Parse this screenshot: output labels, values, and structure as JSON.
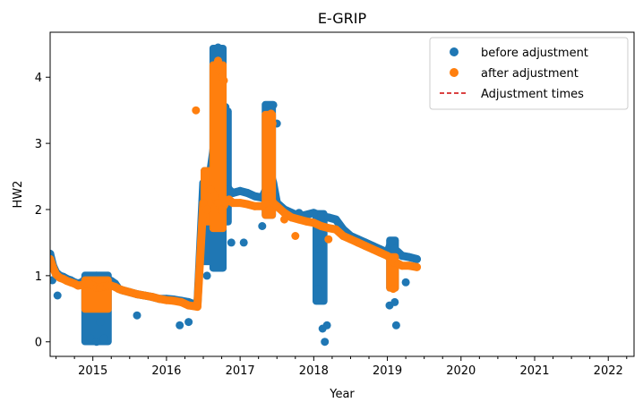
{
  "chart_data": {
    "type": "scatter",
    "title": "E-GRIP",
    "xlabel": "Year",
    "ylabel": "HW2",
    "xlim": [
      2014.42,
      2022.35
    ],
    "ylim": [
      -0.22,
      4.68
    ],
    "xticks": [
      2015,
      2016,
      2017,
      2018,
      2019,
      2020,
      2021,
      2022
    ],
    "yticks": [
      0,
      1,
      2,
      3,
      4
    ],
    "grid": false,
    "legend_position": "top-right",
    "legend": [
      {
        "label": "before adjustment",
        "marker": "circle",
        "color": "#1f77b4"
      },
      {
        "label": "after adjustment",
        "marker": "circle",
        "color": "#ff7f0e"
      },
      {
        "label": "Adjustment times",
        "marker": "dashed-line",
        "color": "#d62728"
      }
    ],
    "series": [
      {
        "name": "before adjustment",
        "color": "#1f77b4",
        "x": [
          2014.42,
          2014.46,
          2014.5,
          2014.55,
          2014.6,
          2014.65,
          2014.7,
          2014.75,
          2014.8,
          2014.85,
          2014.9,
          2014.95,
          2015.0,
          2015.05,
          2015.1,
          2015.15,
          2015.2,
          2015.25,
          2015.3,
          2015.35,
          2015.4,
          2015.5,
          2015.6,
          2015.7,
          2015.8,
          2015.9,
          2016.0,
          2016.1,
          2016.2,
          2016.3,
          2016.42,
          2016.5,
          2016.55,
          2016.6,
          2016.65,
          2016.7,
          2016.75,
          2016.8,
          2016.85,
          2016.9,
          2017.0,
          2017.1,
          2017.2,
          2017.3,
          2017.35,
          2017.4,
          2017.45,
          2017.5,
          2017.6,
          2017.7,
          2017.8,
          2017.9,
          2018.0,
          2018.1,
          2018.2,
          2018.3,
          2018.4,
          2018.5,
          2018.6,
          2018.7,
          2018.8,
          2018.9,
          2019.0,
          2019.05,
          2019.1,
          2019.15,
          2019.2,
          2019.3,
          2019.4,
          2014.45,
          2014.52,
          2014.97,
          2015.05,
          2015.1,
          2015.15,
          2015.6,
          2016.18,
          2016.3,
          2016.52,
          2016.55,
          2016.6,
          2016.68,
          2016.7,
          2016.72,
          2016.76,
          2016.8,
          2016.88,
          2017.05,
          2017.3,
          2017.4,
          2017.45,
          2017.5,
          2017.8,
          2018.05,
          2018.08,
          2018.12,
          2018.15,
          2018.18,
          2019.03,
          2019.1,
          2019.12,
          2019.25
        ],
        "y": [
          1.33,
          1.15,
          1.05,
          1.0,
          0.98,
          0.95,
          0.93,
          0.9,
          0.88,
          0.9,
          0.95,
          0.95,
          0.98,
          1.0,
          0.98,
          0.97,
          0.95,
          0.92,
          0.88,
          0.8,
          0.78,
          0.75,
          0.72,
          0.7,
          0.68,
          0.65,
          0.65,
          0.64,
          0.62,
          0.6,
          0.55,
          2.4,
          2.2,
          2.6,
          3.0,
          3.8,
          2.9,
          2.4,
          2.3,
          2.25,
          2.28,
          2.25,
          2.2,
          2.18,
          2.3,
          2.6,
          2.4,
          2.1,
          2.0,
          1.95,
          1.9,
          1.92,
          1.95,
          1.9,
          1.88,
          1.85,
          1.7,
          1.6,
          1.55,
          1.5,
          1.45,
          1.4,
          1.35,
          1.5,
          1.4,
          1.35,
          1.3,
          1.28,
          1.25,
          0.93,
          0.7,
          0.05,
          0.0,
          0.3,
          0.05,
          0.4,
          0.25,
          0.3,
          1.3,
          1.0,
          1.6,
          3.5,
          4.45,
          4.4,
          4.3,
          3.55,
          1.5,
          1.5,
          1.75,
          3.5,
          3.58,
          3.3,
          1.95,
          0.8,
          1.4,
          0.2,
          0.0,
          0.25,
          0.55,
          0.6,
          0.25,
          0.9
        ],
        "bands": [
          [
            2014.88,
            2015.22,
            -0.01,
            1.02
          ],
          [
            2016.5,
            2016.62,
            1.2,
            2.6
          ],
          [
            2016.62,
            2016.78,
            1.1,
            4.45
          ],
          [
            2016.78,
            2016.85,
            1.8,
            3.5
          ],
          [
            2017.33,
            2017.45,
            1.9,
            3.6
          ],
          [
            2018.02,
            2018.15,
            0.6,
            1.95
          ],
          [
            2019.02,
            2019.12,
            0.8,
            1.55
          ]
        ]
      },
      {
        "name": "after adjustment",
        "color": "#ff7f0e",
        "x": [
          2014.42,
          2014.46,
          2014.5,
          2014.55,
          2014.6,
          2014.65,
          2014.7,
          2014.75,
          2014.8,
          2014.85,
          2014.9,
          2014.95,
          2015.0,
          2015.05,
          2015.1,
          2015.15,
          2015.2,
          2015.25,
          2015.3,
          2015.35,
          2015.4,
          2015.5,
          2015.6,
          2015.7,
          2015.8,
          2015.9,
          2016.0,
          2016.1,
          2016.2,
          2016.3,
          2016.42,
          2016.5,
          2016.55,
          2016.6,
          2016.65,
          2016.7,
          2016.75,
          2016.8,
          2016.85,
          2016.9,
          2017.0,
          2017.1,
          2017.2,
          2017.3,
          2017.35,
          2017.4,
          2017.45,
          2017.5,
          2017.6,
          2017.7,
          2017.8,
          2017.9,
          2018.0,
          2018.1,
          2018.2,
          2018.3,
          2018.4,
          2018.5,
          2018.6,
          2018.7,
          2018.8,
          2018.9,
          2019.0,
          2019.05,
          2019.1,
          2019.15,
          2019.2,
          2019.3,
          2019.4,
          2016.4,
          2016.68,
          2016.7,
          2016.72,
          2016.75,
          2016.78,
          2017.42,
          2017.44,
          2017.6,
          2017.75,
          2018.2,
          2019.08,
          2019.1
        ],
        "y": [
          1.25,
          1.12,
          1.02,
          0.97,
          0.95,
          0.92,
          0.9,
          0.88,
          0.85,
          0.86,
          0.88,
          0.88,
          0.85,
          0.82,
          0.82,
          0.84,
          0.85,
          0.85,
          0.83,
          0.8,
          0.78,
          0.75,
          0.72,
          0.7,
          0.68,
          0.65,
          0.63,
          0.62,
          0.6,
          0.55,
          0.53,
          2.1,
          2.0,
          2.3,
          2.2,
          2.1,
          2.0,
          2.1,
          2.15,
          2.1,
          2.1,
          2.08,
          2.05,
          2.05,
          2.1,
          2.2,
          2.1,
          2.05,
          1.95,
          1.88,
          1.85,
          1.82,
          1.8,
          1.75,
          1.72,
          1.7,
          1.6,
          1.55,
          1.5,
          1.45,
          1.4,
          1.35,
          1.3,
          1.25,
          1.2,
          1.18,
          1.15,
          1.15,
          1.13,
          3.5,
          4.2,
          4.25,
          4.1,
          4.0,
          3.95,
          3.45,
          3.3,
          1.85,
          1.6,
          1.55,
          0.8,
          1.0
        ],
        "bands": [
          [
            2014.88,
            2015.22,
            0.48,
            0.95
          ],
          [
            2016.5,
            2016.62,
            1.8,
            2.6
          ],
          [
            2016.62,
            2016.78,
            1.7,
            4.2
          ],
          [
            2017.33,
            2017.45,
            1.9,
            3.45
          ],
          [
            2019.02,
            2019.12,
            0.8,
            1.3
          ]
        ]
      }
    ]
  }
}
